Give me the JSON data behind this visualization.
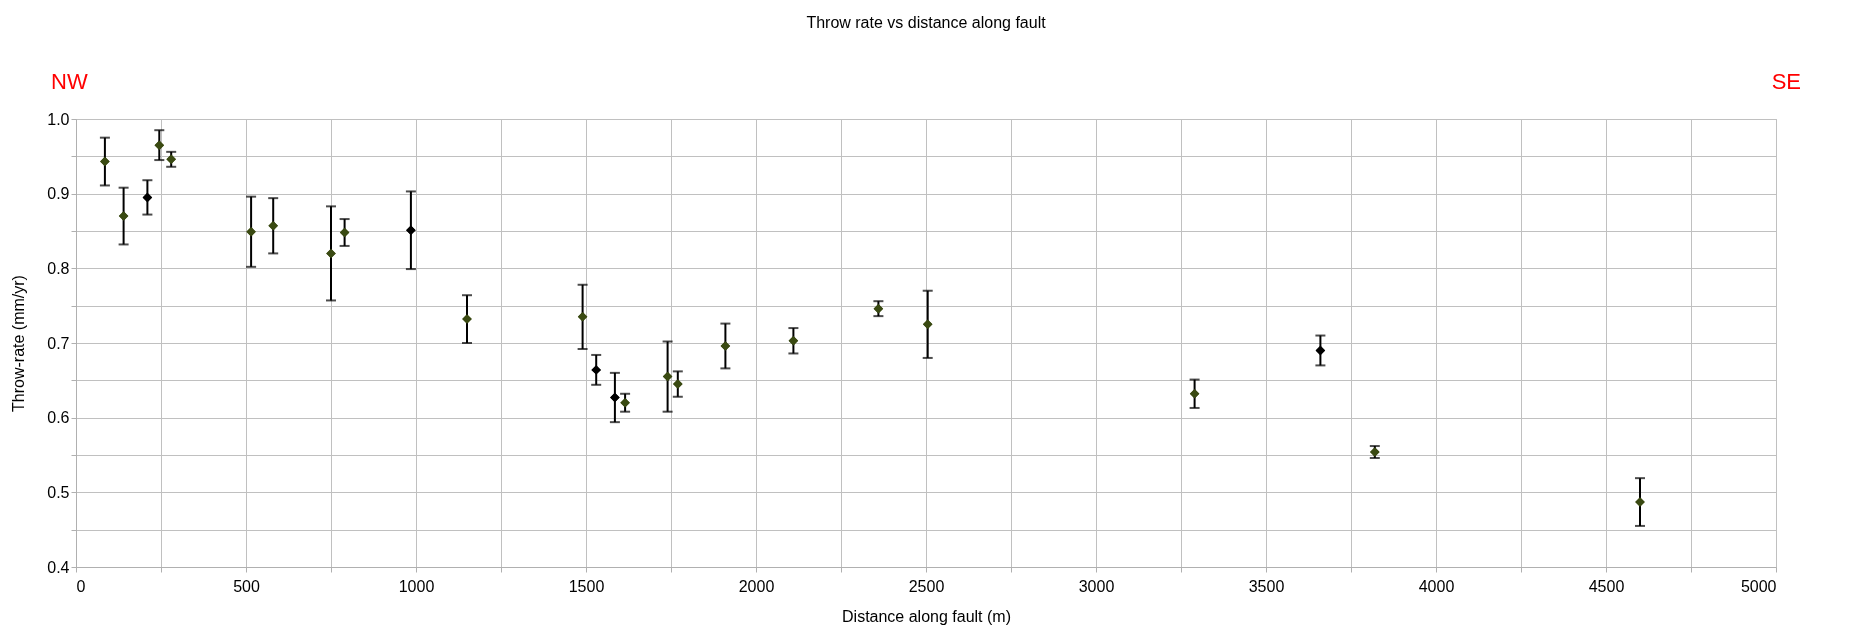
{
  "chart_data": {
    "type": "scatter",
    "title": "Throw rate vs distance along fault",
    "xlabel": "Distance along fault (m)",
    "ylabel": "Throw-rate (mm/yr)",
    "annotations": [
      "NW",
      "SE"
    ],
    "x": [
      85,
      140,
      210,
      245,
      280,
      515,
      580,
      750,
      790,
      985,
      1150,
      1490,
      1530,
      1585,
      1615,
      1740,
      1770,
      1910,
      2110,
      2360,
      2505,
      3290,
      3660,
      3820,
      4600
    ],
    "values": [
      0.943,
      0.87,
      0.895,
      0.965,
      0.946,
      0.849,
      0.857,
      0.82,
      0.848,
      0.851,
      0.732,
      0.735,
      0.664,
      0.627,
      0.62,
      0.655,
      0.645,
      0.696,
      0.703,
      0.746,
      0.725,
      0.632,
      0.69,
      0.554,
      0.487
    ],
    "errors": [
      0.032,
      0.038,
      0.023,
      0.02,
      0.01,
      0.047,
      0.037,
      0.063,
      0.018,
      0.052,
      0.032,
      0.043,
      0.02,
      0.033,
      0.012,
      0.047,
      0.017,
      0.03,
      0.017,
      0.01,
      0.045,
      0.019,
      0.02,
      0.008,
      0.032
    ],
    "colors": [
      "#3a4a12",
      "#3a4a12",
      "#000000",
      "#3a4a12",
      "#3a4a12",
      "#3a4a12",
      "#3a4a12",
      "#3a4a12",
      "#3a4a12",
      "#000000",
      "#3a4a12",
      "#3a4a12",
      "#000000",
      "#000000",
      "#3a4a12",
      "#3a4a12",
      "#3a4a12",
      "#3a4a12",
      "#3a4a12",
      "#3a4a12",
      "#3a4a12",
      "#3a4a12",
      "#000000",
      "#3a4a12",
      "#3a4a12"
    ],
    "marker": "diamond",
    "grid": true,
    "xlim": [
      0,
      5000
    ],
    "xticks": [
      0,
      {
        "value": 250,
        "label": null
      },
      500,
      {
        "value": 750,
        "label": null
      },
      1000,
      {
        "value": 1250,
        "label": null
      },
      1500,
      {
        "value": 1750,
        "label": null
      },
      2000,
      {
        "value": 2250,
        "label": null
      },
      2500,
      {
        "value": 2750,
        "label": null
      },
      3000,
      {
        "value": 3250,
        "label": null
      },
      3500,
      {
        "value": 3750,
        "label": null
      },
      4000,
      {
        "value": 4250,
        "label": null
      },
      4500,
      {
        "value": 4750,
        "label": null
      },
      5000
    ],
    "ylim": [
      0.4,
      1.0
    ],
    "yticks": [
      {
        "value": 0.4,
        "label": "0.4"
      },
      {
        "value": 0.45,
        "label": null
      },
      {
        "value": 0.5,
        "label": "0.5"
      },
      {
        "value": 0.55,
        "label": null
      },
      {
        "value": 0.6,
        "label": "0.6"
      },
      {
        "value": 0.65,
        "label": null
      },
      {
        "value": 0.7,
        "label": "0.7"
      },
      {
        "value": 0.75,
        "label": null
      },
      {
        "value": 0.8,
        "label": "0.8"
      },
      {
        "value": 0.85,
        "label": null
      },
      {
        "value": 0.9,
        "label": "0.9"
      },
      {
        "value": 0.95,
        "label": null
      },
      {
        "value": 1.0,
        "label": "1.0"
      }
    ]
  }
}
